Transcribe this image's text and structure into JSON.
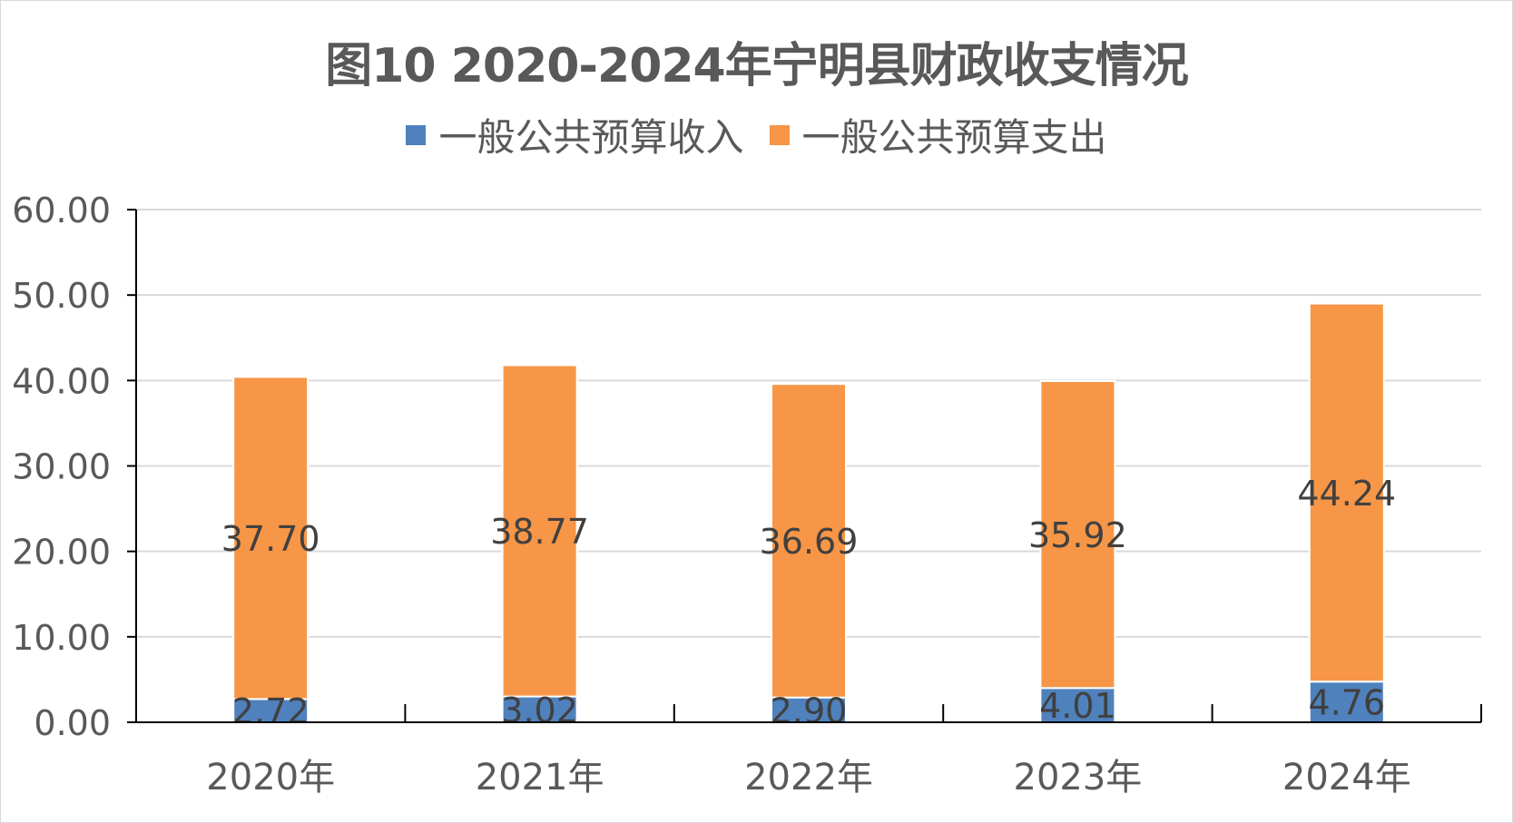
{
  "chart_data": {
    "type": "bar",
    "stacked": true,
    "title": "图10 2020-2024年宁明县财政收支情况",
    "categories": [
      "2020年",
      "2021年",
      "2022年",
      "2023年",
      "2024年"
    ],
    "series": [
      {
        "name": "一般公共预算收入",
        "color": "#4f81bd",
        "values": [
          2.72,
          3.02,
          2.9,
          4.01,
          4.76
        ],
        "labels": [
          "2.72",
          "3.02",
          "2.90",
          "4.01",
          "4.76"
        ]
      },
      {
        "name": "一般公共预算支出",
        "color": "#f79646",
        "values": [
          37.7,
          38.77,
          36.69,
          35.92,
          44.24
        ],
        "labels": [
          "37.70",
          "38.77",
          "36.69",
          "35.92",
          "44.24"
        ]
      }
    ],
    "y_ticks": [
      "0.00",
      "10.00",
      "20.00",
      "30.00",
      "40.00",
      "50.00",
      "60.00"
    ],
    "ylim": [
      0,
      60
    ],
    "grid": true,
    "legend_position": "top",
    "xlabel": "",
    "ylabel": ""
  }
}
